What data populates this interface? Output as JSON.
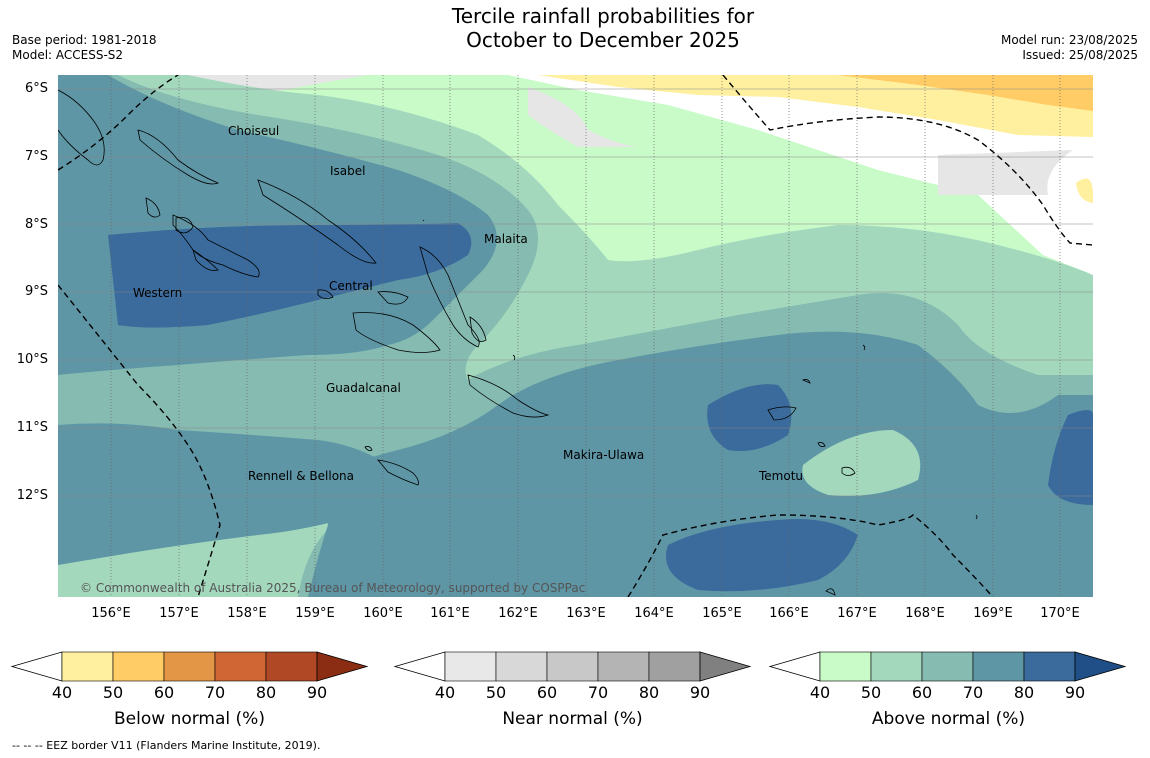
{
  "title_line1": "Tercile rainfall probabilities for",
  "title_line2": "October to December 2025",
  "header_left": {
    "base_period": "Base period: 1981-2018",
    "model": "Model: ACCESS-S2"
  },
  "header_right": {
    "model_run": "Model run: 23/08/2025",
    "issued": "Issued: 25/08/2025"
  },
  "map": {
    "lat_labels": [
      "6°S",
      "7°S",
      "8°S",
      "9°S",
      "10°S",
      "11°S",
      "12°S"
    ],
    "lon_labels": [
      "156°E",
      "157°E",
      "158°E",
      "159°E",
      "160°E",
      "161°E",
      "162°E",
      "163°E",
      "164°E",
      "165°E",
      "166°E",
      "167°E",
      "168°E",
      "169°E",
      "170°E"
    ],
    "provinces": {
      "choiseul": "Choiseul",
      "isabel": "Isabel",
      "malaita": "Malaita",
      "western": "Western",
      "central": "Central",
      "guadalcanal": "Guadalcanal",
      "rennell": "Rennell & Bellona",
      "makira": "Makira-Ulawa",
      "temotu": "Temotu"
    },
    "copyright": "© Commonwealth of Australia 2025, Bureau of Meteorology, supported by COSPPac"
  },
  "colorbars": [
    {
      "label": "Below normal (%)",
      "ticks": [
        "40",
        "50",
        "60",
        "70",
        "80",
        "90"
      ],
      "colors": [
        "#fff0a0",
        "#ffcc66",
        "#e39645",
        "#cf6633",
        "#b04825",
        "#8b2d12"
      ]
    },
    {
      "label": "Near normal (%)",
      "ticks": [
        "40",
        "50",
        "60",
        "70",
        "80",
        "90"
      ],
      "colors": [
        "#e8e8e8",
        "#d8d8d8",
        "#c8c8c8",
        "#b4b4b4",
        "#a0a0a0",
        "#808080"
      ]
    },
    {
      "label": "Above normal (%)",
      "ticks": [
        "40",
        "50",
        "60",
        "70",
        "80",
        "90"
      ],
      "colors": [
        "#c9fbc9",
        "#a3d8bd",
        "#85bbb0",
        "#5e96a6",
        "#3a6b9c",
        "#1f4f86"
      ]
    }
  ],
  "footnote": "--  --  -- EEZ border V11 (Flanders Marine Institute, 2019).",
  "legend_colors": {
    "above_40": "#c9fbc9",
    "above_50": "#a3d8bd",
    "above_60": "#85bbb0",
    "above_70": "#5e96a6",
    "above_80": "#3a6b9c",
    "near_40": "#e6e6e6",
    "below_40": "#fff0a0",
    "below_50": "#ffcc66"
  }
}
